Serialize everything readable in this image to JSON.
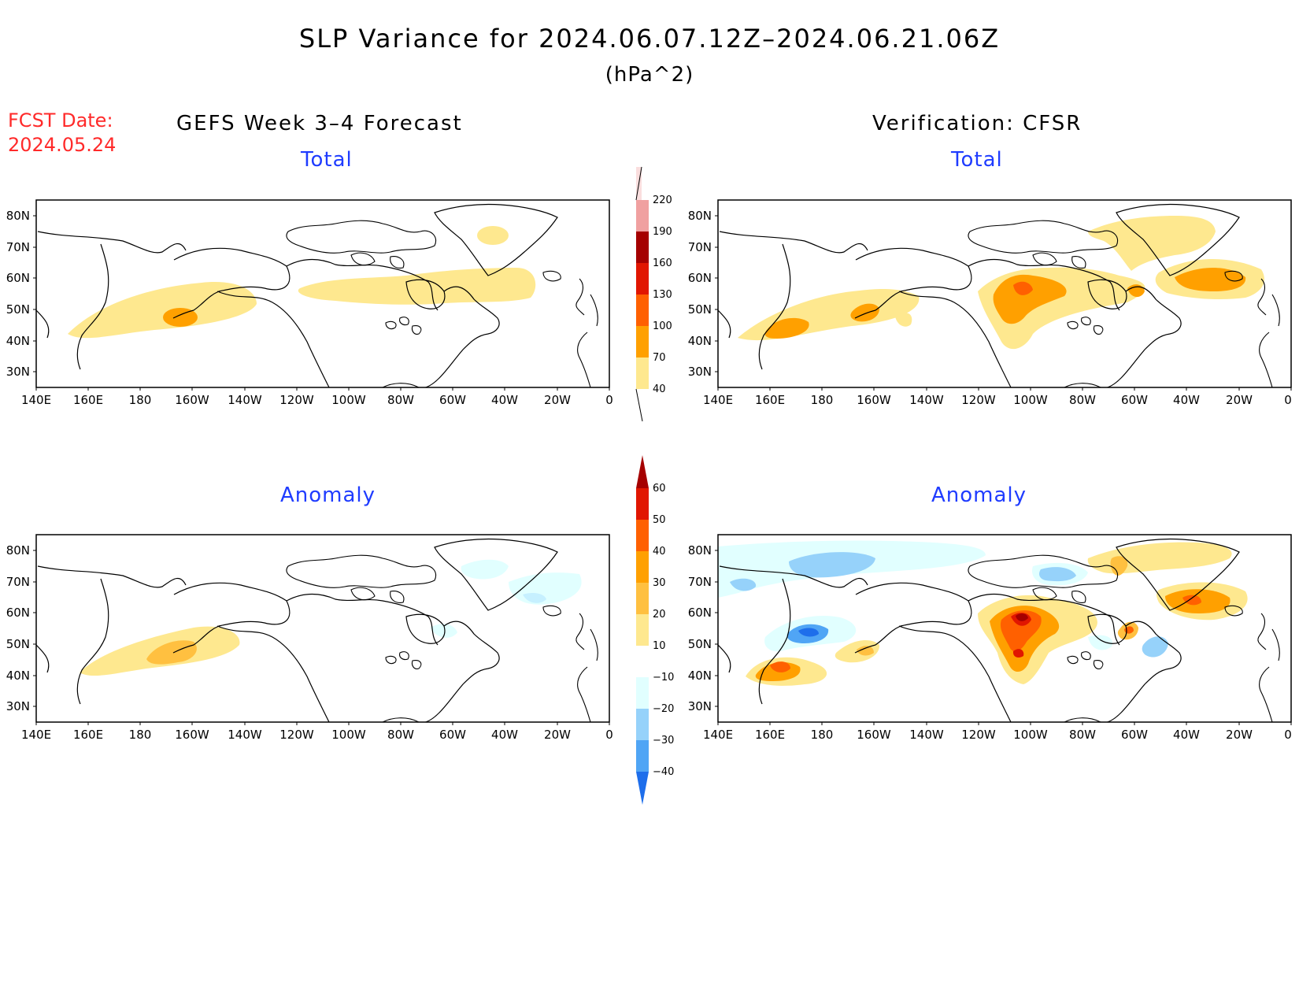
{
  "title": "SLP Variance for 2024.06.07.12Z–2024.06.21.06Z",
  "units": "(hPa^2)",
  "forecast": {
    "label": "FCST Date:",
    "date": "2024.05.24"
  },
  "left_header": "GEFS Week 3–4 Forecast",
  "right_header": "Verification: CFSR",
  "panels": [
    {
      "id": "fcst-total",
      "title": "Total"
    },
    {
      "id": "verif-total",
      "title": "Total"
    },
    {
      "id": "fcst-anom",
      "title": "Anomaly"
    },
    {
      "id": "verif-anom",
      "title": "Anomaly"
    }
  ],
  "map": {
    "lon_range": [
      140,
      360
    ],
    "lat_range": [
      25,
      85
    ],
    "lon_ticks": [
      "140E",
      "160E",
      "180",
      "160W",
      "140W",
      "120W",
      "100W",
      "80W",
      "60W",
      "40W",
      "20W",
      "0"
    ],
    "lat_ticks": [
      "30N",
      "40N",
      "50N",
      "60N",
      "70N",
      "80N"
    ]
  },
  "colorbars": {
    "total": {
      "levels": [
        "40",
        "70",
        "100",
        "130",
        "160",
        "190",
        "220"
      ],
      "colors": [
        "#fee88f",
        "#ffa000",
        "#ff6000",
        "#e11600",
        "#a50000",
        "#f0a0a0",
        "#fadede"
      ]
    },
    "anomaly": {
      "levels": [
        "60",
        "50",
        "40",
        "30",
        "20",
        "10",
        "−10",
        "−20",
        "−30",
        "−40"
      ],
      "colors": [
        "#a50000",
        "#e11600",
        "#ff6000",
        "#ffa000",
        "#ffc040",
        "#fee88f",
        "#ffffff",
        "#e1ffff",
        "#96d2fa",
        "#50a5f5",
        "#1e6eeb"
      ]
    }
  }
}
